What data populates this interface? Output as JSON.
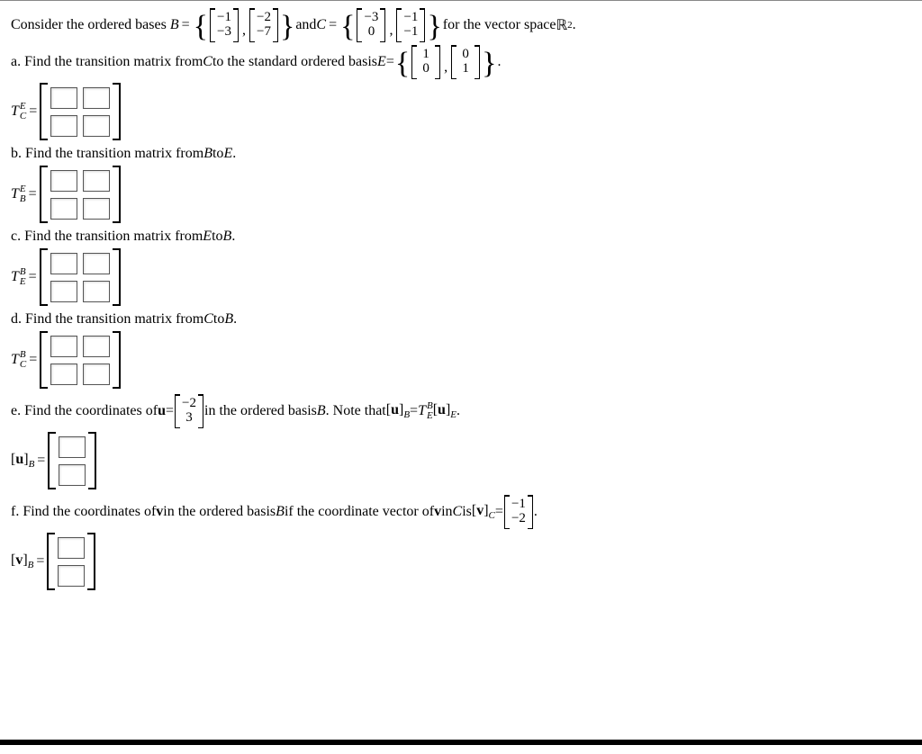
{
  "intro": {
    "prefix": "Consider the ordered bases ",
    "B_sym": "B",
    "C_sym": "C",
    "and_txt": " and ",
    "for_txt": " for the vector space ",
    "space": "ℝ",
    "space_sup": "2",
    "period": ".",
    "B_v1": [
      "−1",
      "−3"
    ],
    "B_v2": [
      "−2",
      "−7"
    ],
    "C_v1": [
      "−3",
      "0"
    ],
    "C_v2": [
      "−1",
      "−1"
    ]
  },
  "parts": {
    "a": {
      "text": "a. Find the transition matrix from ",
      "from": "C",
      "mid": " to the standard ordered basis ",
      "to": "E",
      "eqtxt": " = ",
      "E_v1": [
        "1",
        "0"
      ],
      "E_v2": [
        "0",
        "1"
      ],
      "trail": ".",
      "label_top": "E",
      "label_bot": "C"
    },
    "b": {
      "text": "b. Find the transition matrix from ",
      "from": "B",
      "mid": " to ",
      "to": "E",
      "trail": ".",
      "label_top": "E",
      "label_bot": "B"
    },
    "c": {
      "text": "c. Find the transition matrix from ",
      "from": "E",
      "mid": " to ",
      "to": "B",
      "trail": ".",
      "label_top": "B",
      "label_bot": "E"
    },
    "d": {
      "text": "d. Find the transition matrix from ",
      "from": "C",
      "mid": " to ",
      "to": "B",
      "trail": ".",
      "label_top": "B",
      "label_bot": "C"
    },
    "e": {
      "text1": "e. Find the coordinates of ",
      "u": "u",
      "eqtxt": " = ",
      "vec": [
        "−2",
        "3"
      ],
      "text2": " in the ordered basis ",
      "basis": "B",
      "note1": ". Note that ",
      "lhs_open": "[",
      "lhs_sym": "u",
      "lhs_close": "]",
      "lhs_sub": "B",
      "eq2": " = ",
      "T_top": "B",
      "T_bot": "E",
      "rhs_open": "[",
      "rhs_sym": "u",
      "rhs_close": "]",
      "rhs_sub": "E",
      "trail": ".",
      "ans_label_sym": "u",
      "ans_label_sub": "B"
    },
    "f": {
      "text1": "f. Find the coordinates of ",
      "v": "v",
      "text2": " in the ordered basis ",
      "basis": "B",
      "text3": " if the coordinate vector of ",
      "text4": " in ",
      "C": "C",
      "text5": " is ",
      "coord_open": "[",
      "coord_sym": "v",
      "coord_close": "]",
      "coord_sub": "C",
      "eq": " = ",
      "vec": [
        "−1",
        "−2"
      ],
      "trail": ".",
      "ans_label_sym": "v",
      "ans_label_sub": "B"
    }
  },
  "Tsym": "T",
  "eq_sym": "="
}
